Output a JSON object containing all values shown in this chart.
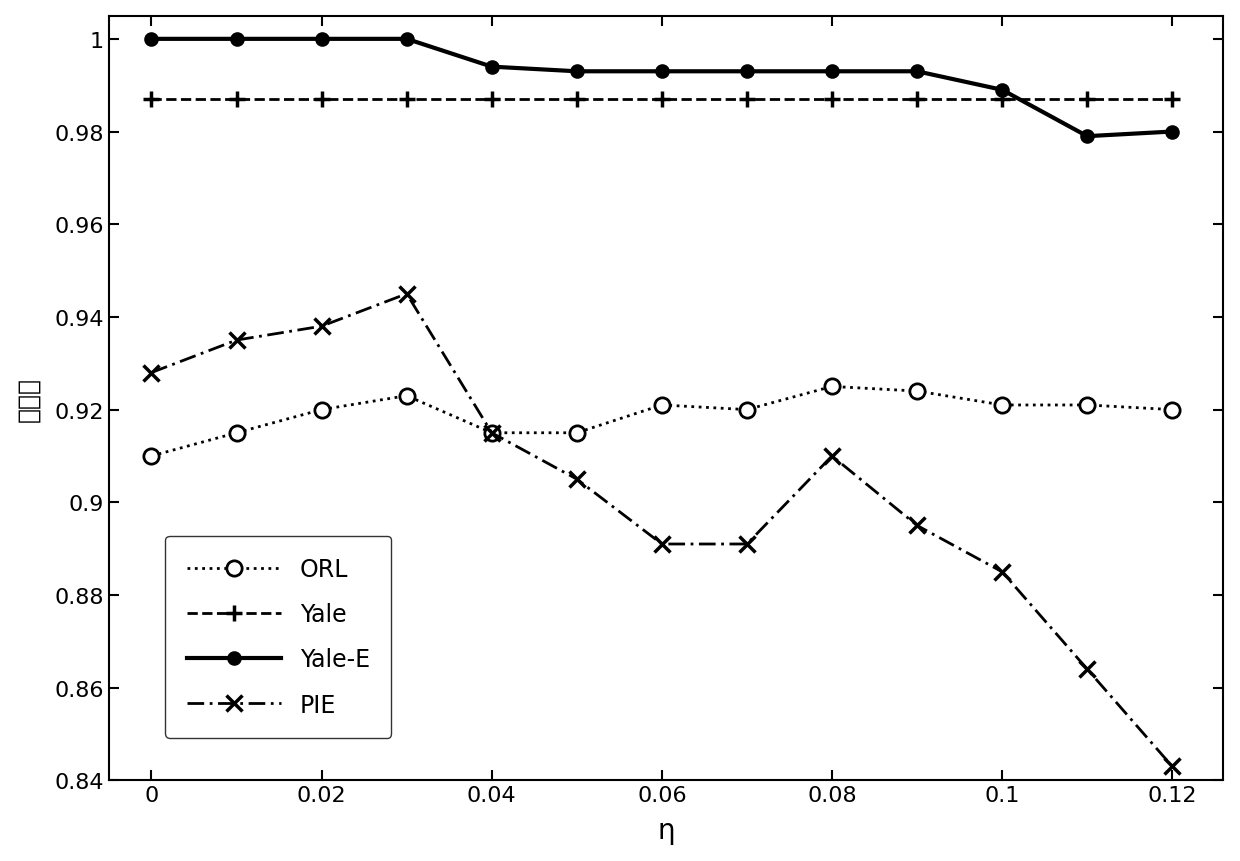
{
  "x": [
    0,
    0.01,
    0.02,
    0.03,
    0.04,
    0.05,
    0.06,
    0.07,
    0.08,
    0.09,
    0.1,
    0.11,
    0.12
  ],
  "ORL": [
    0.91,
    0.915,
    0.92,
    0.923,
    0.915,
    0.915,
    0.921,
    0.92,
    0.925,
    0.924,
    0.921,
    0.921,
    0.92
  ],
  "Yale": [
    0.987,
    0.987,
    0.987,
    0.987,
    0.987,
    0.987,
    0.987,
    0.987,
    0.987,
    0.987,
    0.987,
    0.987,
    0.987
  ],
  "Yale_E": [
    1.0,
    1.0,
    1.0,
    1.0,
    0.994,
    0.993,
    0.993,
    0.993,
    0.993,
    0.993,
    0.989,
    0.979,
    0.98
  ],
  "PIE": [
    0.928,
    0.935,
    0.938,
    0.945,
    0.915,
    0.905,
    0.891,
    0.891,
    0.91,
    0.895,
    0.885,
    0.864,
    0.843
  ],
  "ylabel": "识别率",
  "xlabel": "η",
  "ylim": [
    0.84,
    1.005
  ],
  "yticks": [
    0.84,
    0.86,
    0.88,
    0.9,
    0.92,
    0.94,
    0.96,
    0.98,
    1.0
  ],
  "ytick_labels": [
    "0.84",
    "0.86",
    "0.88",
    "0.9",
    "0.92",
    "0.94",
    "0.96",
    "0.98",
    "1"
  ],
  "xticks": [
    0,
    0.02,
    0.04,
    0.06,
    0.08,
    0.1,
    0.12
  ],
  "xtick_labels": [
    "0",
    "0.02",
    "0.04",
    "0.06",
    "0.08",
    "0.1",
    "0.12"
  ]
}
